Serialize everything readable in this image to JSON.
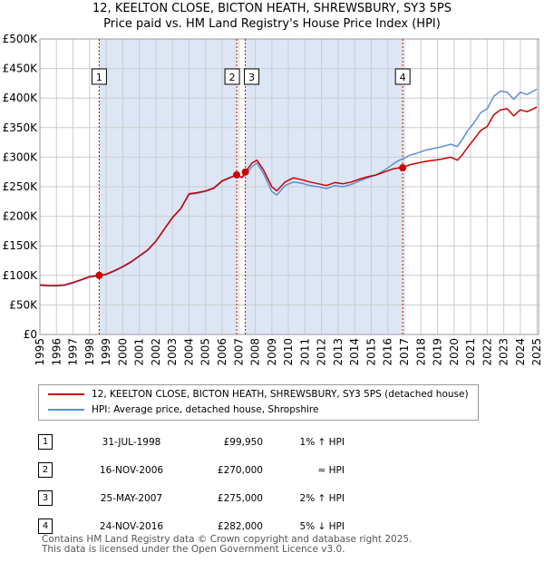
{
  "title_line1": "12, KEELTON CLOSE, BICTON HEATH, SHREWSBURY, SY3 5PS",
  "title_line2": "Price paid vs. HM Land Registry's House Price Index (HPI)",
  "colors": {
    "property": "#cc0000",
    "hpi": "#5b8fd4",
    "shade": "#dde6f5",
    "marker_line": "#cc0000",
    "grid": "#cccccc"
  },
  "legend": {
    "property_label": "12, KEELTON CLOSE, BICTON HEATH, SHREWSBURY, SY3 5PS (detached house)",
    "hpi_label": "HPI: Average price, detached house, Shropshire"
  },
  "sales": [
    {
      "num": "1",
      "date": "31-JUL-1998",
      "price": "£99,950",
      "hpi": "1% ↑ HPI"
    },
    {
      "num": "2",
      "date": "16-NOV-2006",
      "price": "£270,000",
      "hpi": "≈ HPI"
    },
    {
      "num": "3",
      "date": "25-MAY-2007",
      "price": "£275,000",
      "hpi": "2% ↑ HPI"
    },
    {
      "num": "4",
      "date": "24-NOV-2016",
      "price": "£282,000",
      "hpi": "5% ↓ HPI"
    }
  ],
  "footer_line1": "Contains HM Land Registry data © Crown copyright and database right 2025.",
  "footer_line2": "This data is licensed under the Open Government Licence v3.0.",
  "chart_data": {
    "type": "line",
    "xlim": [
      1995,
      2025.1
    ],
    "ylim": [
      0,
      500000
    ],
    "y_ticks": [
      0,
      50000,
      100000,
      150000,
      200000,
      250000,
      300000,
      350000,
      400000,
      450000,
      500000
    ],
    "y_tick_labels": [
      "£0",
      "£50K",
      "£100K",
      "£150K",
      "£200K",
      "£250K",
      "£300K",
      "£350K",
      "£400K",
      "£450K",
      "£500K"
    ],
    "x_ticks": [
      1995,
      1996,
      1997,
      1998,
      1999,
      2000,
      2001,
      2002,
      2003,
      2004,
      2005,
      2006,
      2007,
      2008,
      2009,
      2010,
      2011,
      2012,
      2013,
      2014,
      2015,
      2016,
      2017,
      2018,
      2019,
      2020,
      2021,
      2022,
      2023,
      2024,
      2025
    ],
    "x_tick_labels": [
      "1995",
      "1996",
      "1997",
      "1998",
      "1999",
      "2000",
      "2001",
      "2002",
      "2003",
      "2004",
      "2005",
      "2006",
      "2007",
      "2008",
      "2009",
      "2010",
      "2011",
      "2012",
      "2013",
      "2014",
      "2015",
      "2016",
      "2017",
      "2018",
      "2019",
      "2020",
      "2021",
      "2022",
      "2023",
      "2024",
      "2025"
    ],
    "grid": true,
    "shaded_spans": [
      [
        1998.58,
        2006.88
      ],
      [
        2007.4,
        2016.9
      ]
    ],
    "markers": [
      {
        "label": "1",
        "x": 1998.58,
        "y": 99950
      },
      {
        "label": "2",
        "x": 2006.88,
        "y": 270000
      },
      {
        "label": "3",
        "x": 2007.4,
        "y": 275000
      },
      {
        "label": "4",
        "x": 2016.9,
        "y": 282000
      }
    ],
    "series": [
      {
        "name": "12, KEELTON CLOSE, BICTON HEATH, SHREWSBURY, SY3 5PS (detached house)",
        "x": [
          1995,
          1995.5,
          1996,
          1996.5,
          1997,
          1997.5,
          1998,
          1998.58,
          1999,
          1999.5,
          2000,
          2000.5,
          2001,
          2001.5,
          2002,
          2002.5,
          2003,
          2003.5,
          2004,
          2004.5,
          2005,
          2005.5,
          2006,
          2006.5,
          2006.88,
          2007.2,
          2007.4,
          2007.8,
          2008.1,
          2008.5,
          2009,
          2009.3,
          2009.8,
          2010.3,
          2010.8,
          2011.3,
          2011.8,
          2012.3,
          2012.8,
          2013.3,
          2013.8,
          2014.3,
          2014.8,
          2015.3,
          2015.8,
          2016.3,
          2016.7,
          2016.9,
          2017.3,
          2017.8,
          2018.3,
          2018.8,
          2019.3,
          2019.8,
          2020.2,
          2020.5,
          2020.8,
          2021.2,
          2021.6,
          2022,
          2022.4,
          2022.8,
          2023.2,
          2023.6,
          2024,
          2024.4,
          2024.8,
          2025
        ],
        "y": [
          84000,
          83000,
          83000,
          84000,
          88000,
          93000,
          98000,
          99950,
          102000,
          108000,
          115000,
          123000,
          133000,
          143000,
          158000,
          178000,
          198000,
          213000,
          238000,
          240000,
          243000,
          248000,
          260000,
          266000,
          270000,
          266000,
          275000,
          290000,
          295000,
          278000,
          250000,
          243000,
          258000,
          265000,
          262000,
          258000,
          255000,
          252000,
          257000,
          255000,
          258000,
          263000,
          267000,
          270000,
          275000,
          280000,
          282000,
          282000,
          287000,
          290000,
          293000,
          295000,
          297000,
          300000,
          295000,
          304000,
          316000,
          330000,
          345000,
          352000,
          372000,
          380000,
          382000,
          370000,
          380000,
          377000,
          382000,
          385000
        ]
      },
      {
        "name": "HPI: Average price, detached house, Shropshire",
        "x": [
          1995,
          1995.5,
          1996,
          1996.5,
          1997,
          1997.5,
          1998,
          1998.58,
          1999,
          1999.5,
          2000,
          2000.5,
          2001,
          2001.5,
          2002,
          2002.5,
          2003,
          2003.5,
          2004,
          2004.5,
          2005,
          2005.5,
          2006,
          2006.5,
          2006.88,
          2007.2,
          2007.4,
          2007.8,
          2008.1,
          2008.5,
          2009,
          2009.3,
          2009.8,
          2010.3,
          2010.8,
          2011.3,
          2011.8,
          2012.3,
          2012.8,
          2013.3,
          2013.8,
          2014.3,
          2014.8,
          2015.3,
          2015.8,
          2016.3,
          2016.7,
          2016.9,
          2017.3,
          2017.8,
          2018.3,
          2018.8,
          2019.3,
          2019.8,
          2020.2,
          2020.5,
          2020.8,
          2021.2,
          2021.6,
          2022,
          2022.4,
          2022.8,
          2023.2,
          2023.6,
          2024,
          2024.4,
          2024.8,
          2025
        ],
        "y": [
          83000,
          82000,
          82000,
          83000,
          87000,
          92000,
          97000,
          99000,
          101000,
          107000,
          114000,
          122000,
          132000,
          142000,
          157000,
          177000,
          197000,
          212000,
          237000,
          239000,
          242000,
          247000,
          259000,
          265000,
          270000,
          265000,
          270000,
          284000,
          290000,
          272000,
          242000,
          236000,
          252000,
          258000,
          256000,
          252000,
          250000,
          247000,
          252000,
          250000,
          254000,
          260000,
          265000,
          270000,
          278000,
          288000,
          295000,
          297000,
          303000,
          307000,
          312000,
          315000,
          318000,
          322000,
          318000,
          330000,
          344000,
          358000,
          375000,
          382000,
          403000,
          412000,
          410000,
          398000,
          410000,
          406000,
          412000,
          415000
        ]
      }
    ]
  }
}
